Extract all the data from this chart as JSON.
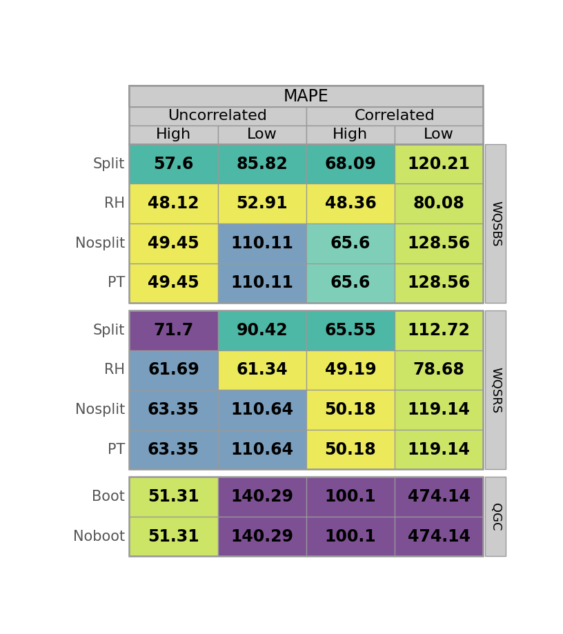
{
  "title": "MAPE",
  "col_headers_level1": [
    "Uncorrelated",
    "Correlated"
  ],
  "col_headers_level2": [
    "High",
    "Low",
    "High",
    "Low"
  ],
  "row_groups": [
    {
      "group_label": "WQSBS",
      "rows": [
        {
          "label": "Split",
          "values": [
            57.6,
            85.82,
            68.09,
            120.21
          ]
        },
        {
          "label": "RH",
          "values": [
            48.12,
            52.91,
            48.36,
            80.08
          ]
        },
        {
          "label": "Nosplit",
          "values": [
            49.45,
            110.11,
            65.6,
            128.56
          ]
        },
        {
          "label": "PT",
          "values": [
            49.45,
            110.11,
            65.6,
            128.56
          ]
        }
      ]
    },
    {
      "group_label": "WQSRS",
      "rows": [
        {
          "label": "Split",
          "values": [
            71.7,
            90.42,
            65.55,
            112.72
          ]
        },
        {
          "label": "RH",
          "values": [
            61.69,
            61.34,
            49.19,
            78.68
          ]
        },
        {
          "label": "Nosplit",
          "values": [
            63.35,
            110.64,
            50.18,
            119.14
          ]
        },
        {
          "label": "PT",
          "values": [
            63.35,
            110.64,
            50.18,
            119.14
          ]
        }
      ]
    },
    {
      "group_label": "QGC",
      "rows": [
        {
          "label": "Boot",
          "values": [
            51.31,
            140.29,
            100.1,
            474.14
          ]
        },
        {
          "label": "Noboot",
          "values": [
            51.31,
            140.29,
            100.1,
            474.14
          ]
        }
      ]
    }
  ],
  "cell_colors": [
    [
      "#4db8a5",
      "#4db8a5",
      "#4db8a5",
      "#cce566"
    ],
    [
      "#ecea5a",
      "#ecea5a",
      "#ecea5a",
      "#cce566"
    ],
    [
      "#ecea5a",
      "#7a9fbe",
      "#7fcfb8",
      "#cce566"
    ],
    [
      "#ecea5a",
      "#7a9fbe",
      "#7fcfb8",
      "#cce566"
    ],
    [
      "#7d5094",
      "#4db8a5",
      "#4db8a5",
      "#cce566"
    ],
    [
      "#7a9fbe",
      "#ecea5a",
      "#ecea5a",
      "#cce566"
    ],
    [
      "#7a9fbe",
      "#7a9fbe",
      "#ecea5a",
      "#cce566"
    ],
    [
      "#7a9fbe",
      "#7a9fbe",
      "#ecea5a",
      "#cce566"
    ],
    [
      "#cce566",
      "#7d5094",
      "#7d5094",
      "#7d5094"
    ],
    [
      "#cce566",
      "#7d5094",
      "#7d5094",
      "#7d5094"
    ]
  ],
  "header_bg": "#cccccc",
  "border_color": "#999999",
  "text_color": "#000000",
  "font_size_data": 17,
  "font_size_header": 16,
  "font_size_row_label": 15,
  "font_size_group_label": 13
}
